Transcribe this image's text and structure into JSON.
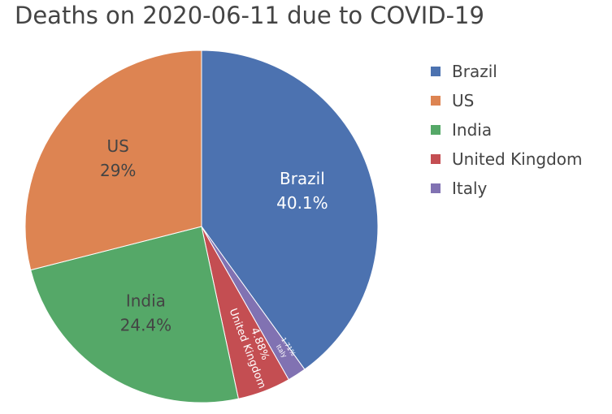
{
  "chart_data": {
    "type": "pie",
    "title": "Deaths on 2020-06-11 due to COVID-19",
    "slices": [
      {
        "label": "Brazil",
        "percent_label": "40.1%",
        "value": 40.1,
        "color": "#4c72b0"
      },
      {
        "label": "Italy",
        "percent_label": "1.71%",
        "value": 1.71,
        "color": "#8172b2"
      },
      {
        "label": "United Kingdom",
        "percent_label": "4.88%",
        "value": 4.88,
        "color": "#c44e52"
      },
      {
        "label": "India",
        "percent_label": "24.4%",
        "value": 24.4,
        "color": "#55a868"
      },
      {
        "label": "US",
        "percent_label": "29%",
        "value": 29.0,
        "color": "#dd8452"
      }
    ],
    "legend": {
      "placement": "right",
      "items": [
        {
          "label": "Brazil",
          "color": "#4c72b0"
        },
        {
          "label": "US",
          "color": "#dd8452"
        },
        {
          "label": "India",
          "color": "#55a868"
        },
        {
          "label": "United Kingdom",
          "color": "#c44e52"
        },
        {
          "label": "Italy",
          "color": "#8172b2"
        }
      ]
    }
  }
}
